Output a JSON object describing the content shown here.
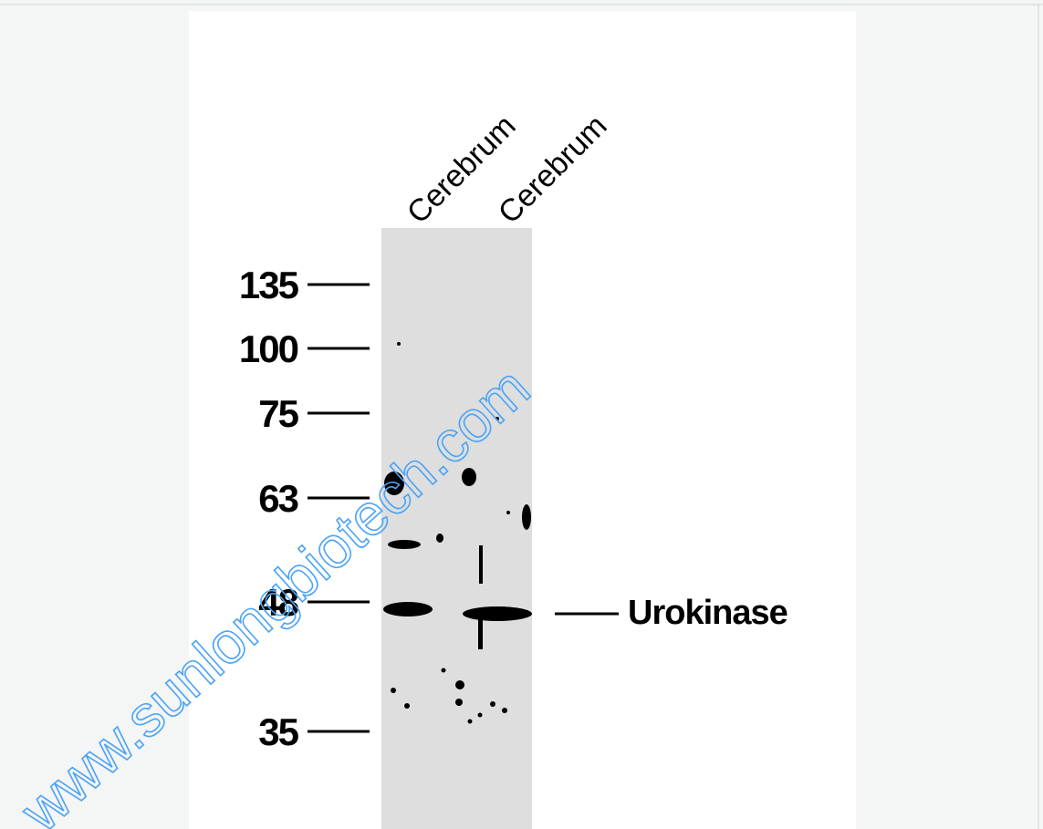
{
  "lanes": [
    "Cerebrum",
    "Cerebrum"
  ],
  "markers": [
    "135",
    "100",
    "75",
    "63",
    "48",
    "35"
  ],
  "band_label": "Urokinase",
  "watermark": "www.sunlongbiotech.com"
}
